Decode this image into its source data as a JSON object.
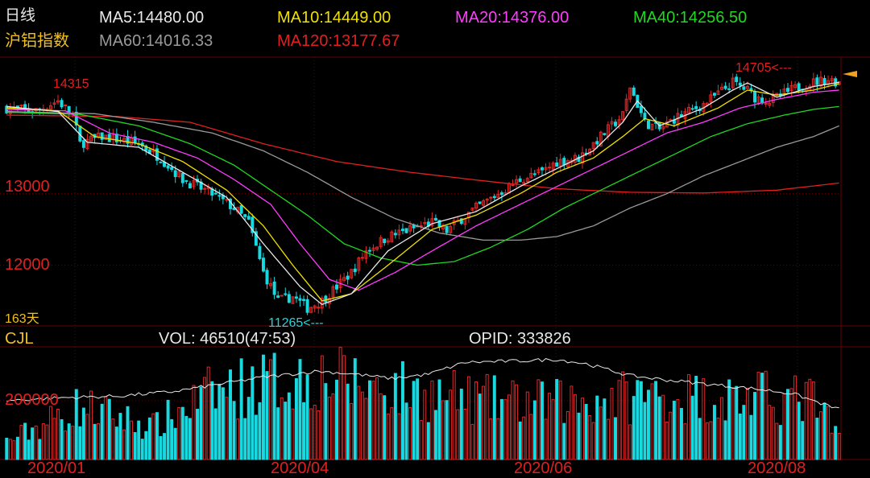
{
  "header": {
    "period": "日线",
    "instrument": "沪铝指数",
    "ma_values": [
      {
        "label": "MA5:14480.00",
        "color": "#e8e8e8"
      },
      {
        "label": "MA10:14449.00",
        "color": "#f0e000"
      },
      {
        "label": "MA20:14376.00",
        "color": "#ff3cff"
      },
      {
        "label": "MA40:14256.50",
        "color": "#20d820"
      },
      {
        "label": "MA60:14016.33",
        "color": "#9a9a9a"
      },
      {
        "label": "MA120:13177.67",
        "color": "#e02020"
      }
    ]
  },
  "price_panel": {
    "y_ticks": [
      "13000",
      "12000"
    ],
    "max_label": "14315",
    "high_marker": "14705<---",
    "low_marker": "11265<---",
    "days_label": "163天"
  },
  "volume_panel": {
    "indicator": "CJL",
    "vol_label": "VOL: 46510(47:53)",
    "opid_label": "OPID: 333826",
    "y_tick": "200000"
  },
  "x_ticks": [
    "2020/01",
    "2020/04",
    "2020/06",
    "2020/08"
  ],
  "colors": {
    "up": "#e02828",
    "down": "#18d8e0",
    "grid": "#6a0000",
    "tick": "#e02020",
    "ma5": "#e8e8e8",
    "ma10": "#f0e000",
    "ma20": "#ff3cff",
    "ma40": "#20d820",
    "ma60": "#9a9a9a",
    "ma120": "#e02020",
    "opid": "#e8e8e8"
  },
  "chart_data": {
    "type": "candlestick",
    "price_key_points": [
      [
        0,
        14200
      ],
      [
        8,
        14160
      ],
      [
        14,
        14300
      ],
      [
        18,
        14100
      ],
      [
        20,
        13700
      ],
      [
        26,
        13800
      ],
      [
        36,
        13700
      ],
      [
        42,
        13500
      ],
      [
        48,
        13200
      ],
      [
        56,
        13000
      ],
      [
        62,
        12800
      ],
      [
        66,
        12600
      ],
      [
        70,
        11900
      ],
      [
        74,
        11500
      ],
      [
        78,
        11560
      ],
      [
        82,
        11400
      ],
      [
        86,
        11500
      ],
      [
        90,
        11700
      ],
      [
        94,
        11900
      ],
      [
        98,
        12200
      ],
      [
        104,
        12400
      ],
      [
        110,
        12500
      ],
      [
        116,
        12600
      ],
      [
        120,
        12480
      ],
      [
        124,
        12650
      ],
      [
        128,
        12800
      ],
      [
        134,
        13000
      ],
      [
        140,
        13200
      ],
      [
        146,
        13300
      ],
      [
        150,
        13450
      ],
      [
        156,
        13500
      ],
      [
        160,
        13700
      ],
      [
        164,
        13900
      ],
      [
        168,
        14100
      ],
      [
        170,
        14500
      ],
      [
        174,
        14000
      ],
      [
        178,
        13900
      ],
      [
        182,
        14050
      ],
      [
        186,
        14150
      ],
      [
        190,
        14250
      ],
      [
        194,
        14400
      ],
      [
        198,
        14560
      ],
      [
        202,
        14450
      ],
      [
        204,
        14350
      ],
      [
        208,
        14300
      ],
      [
        212,
        14400
      ],
      [
        216,
        14500
      ],
      [
        220,
        14560
      ],
      [
        224,
        14600
      ],
      [
        227,
        14560
      ]
    ],
    "ma_key_points": {
      "ma5": [
        [
          0,
          14220
        ],
        [
          14,
          14150
        ],
        [
          22,
          13720
        ],
        [
          36,
          13650
        ],
        [
          48,
          13300
        ],
        [
          60,
          12950
        ],
        [
          70,
          12300
        ],
        [
          80,
          11700
        ],
        [
          86,
          11450
        ],
        [
          94,
          11600
        ],
        [
          104,
          12200
        ],
        [
          116,
          12580
        ],
        [
          128,
          12750
        ],
        [
          140,
          13100
        ],
        [
          150,
          13350
        ],
        [
          160,
          13600
        ],
        [
          168,
          14000
        ],
        [
          172,
          14300
        ],
        [
          178,
          13950
        ],
        [
          190,
          14200
        ],
        [
          198,
          14450
        ],
        [
          202,
          14550
        ],
        [
          210,
          14350
        ],
        [
          220,
          14500
        ],
        [
          227,
          14560
        ]
      ],
      "ma10": [
        [
          0,
          14200
        ],
        [
          14,
          14160
        ],
        [
          24,
          13800
        ],
        [
          36,
          13700
        ],
        [
          48,
          13450
        ],
        [
          60,
          13050
        ],
        [
          70,
          12550
        ],
        [
          78,
          12000
        ],
        [
          86,
          11500
        ],
        [
          94,
          11600
        ],
        [
          104,
          12000
        ],
        [
          116,
          12500
        ],
        [
          128,
          12700
        ],
        [
          140,
          13000
        ],
        [
          150,
          13300
        ],
        [
          160,
          13500
        ],
        [
          168,
          13800
        ],
        [
          174,
          14050
        ],
        [
          182,
          13950
        ],
        [
          194,
          14200
        ],
        [
          202,
          14450
        ],
        [
          210,
          14380
        ],
        [
          220,
          14450
        ],
        [
          227,
          14540
        ]
      ],
      "ma20": [
        [
          0,
          14180
        ],
        [
          16,
          14160
        ],
        [
          28,
          13850
        ],
        [
          40,
          13720
        ],
        [
          52,
          13500
        ],
        [
          62,
          13200
        ],
        [
          72,
          12850
        ],
        [
          80,
          12300
        ],
        [
          88,
          11800
        ],
        [
          96,
          11650
        ],
        [
          106,
          11900
        ],
        [
          116,
          12200
        ],
        [
          128,
          12550
        ],
        [
          140,
          12850
        ],
        [
          150,
          13100
        ],
        [
          160,
          13350
        ],
        [
          170,
          13600
        ],
        [
          180,
          13850
        ],
        [
          190,
          14000
        ],
        [
          200,
          14200
        ],
        [
          210,
          14320
        ],
        [
          220,
          14420
        ],
        [
          227,
          14450
        ]
      ],
      "ma40": [
        [
          0,
          14140
        ],
        [
          20,
          14110
        ],
        [
          36,
          13950
        ],
        [
          50,
          13700
        ],
        [
          62,
          13400
        ],
        [
          72,
          13050
        ],
        [
          82,
          12700
        ],
        [
          92,
          12300
        ],
        [
          102,
          12100
        ],
        [
          112,
          12000
        ],
        [
          122,
          12050
        ],
        [
          132,
          12250
        ],
        [
          142,
          12500
        ],
        [
          152,
          12800
        ],
        [
          162,
          13050
        ],
        [
          172,
          13300
        ],
        [
          182,
          13550
        ],
        [
          192,
          13800
        ],
        [
          202,
          13980
        ],
        [
          212,
          14100
        ],
        [
          220,
          14180
        ],
        [
          227,
          14220
        ]
      ],
      "ma60": [
        [
          0,
          14150
        ],
        [
          24,
          14120
        ],
        [
          40,
          14000
        ],
        [
          56,
          13850
        ],
        [
          70,
          13600
        ],
        [
          82,
          13300
        ],
        [
          94,
          12950
        ],
        [
          106,
          12650
        ],
        [
          118,
          12450
        ],
        [
          130,
          12350
        ],
        [
          140,
          12350
        ],
        [
          150,
          12400
        ],
        [
          160,
          12550
        ],
        [
          170,
          12800
        ],
        [
          180,
          13000
        ],
        [
          190,
          13250
        ],
        [
          200,
          13450
        ],
        [
          210,
          13650
        ],
        [
          220,
          13800
        ],
        [
          227,
          13950
        ]
      ],
      "ma120": [
        [
          0,
          14100
        ],
        [
          30,
          14080
        ],
        [
          50,
          14000
        ],
        [
          70,
          13700
        ],
        [
          90,
          13450
        ],
        [
          110,
          13300
        ],
        [
          130,
          13180
        ],
        [
          150,
          13070
        ],
        [
          170,
          13020
        ],
        [
          190,
          13010
        ],
        [
          210,
          13050
        ],
        [
          227,
          13150
        ]
      ]
    },
    "volume_key_points": [
      [
        0,
        60000
      ],
      [
        20,
        180000
      ],
      [
        40,
        110000
      ],
      [
        55,
        220000
      ],
      [
        70,
        260000
      ],
      [
        85,
        280000
      ],
      [
        100,
        250000
      ],
      [
        115,
        220000
      ],
      [
        130,
        200000
      ],
      [
        145,
        190000
      ],
      [
        160,
        200000
      ],
      [
        175,
        220000
      ],
      [
        190,
        210000
      ],
      [
        205,
        210000
      ],
      [
        220,
        200000
      ],
      [
        227,
        70000
      ]
    ],
    "opid_key_points": [
      [
        0,
        200000
      ],
      [
        15,
        210000
      ],
      [
        30,
        215000
      ],
      [
        45,
        230000
      ],
      [
        55,
        250000
      ],
      [
        70,
        280000
      ],
      [
        85,
        300000
      ],
      [
        95,
        290000
      ],
      [
        105,
        275000
      ],
      [
        115,
        290000
      ],
      [
        125,
        330000
      ],
      [
        140,
        335000
      ],
      [
        150,
        340000
      ],
      [
        158,
        325000
      ],
      [
        170,
        285000
      ],
      [
        180,
        270000
      ],
      [
        192,
        255000
      ],
      [
        204,
        240000
      ],
      [
        214,
        225000
      ],
      [
        227,
        170000
      ]
    ],
    "candle_count": 228,
    "price_range": [
      11150,
      14900
    ],
    "volume_range": [
      0,
      380000
    ]
  }
}
